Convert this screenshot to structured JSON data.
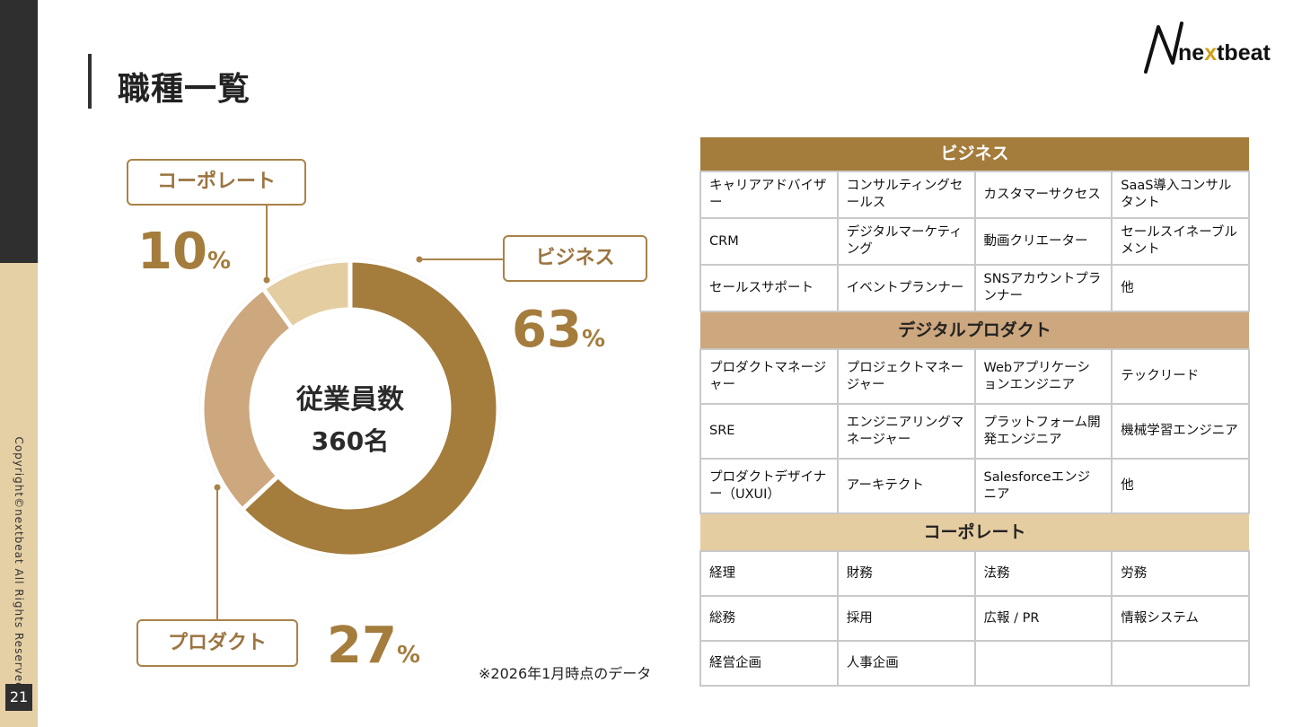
{
  "page": {
    "title": "職種一覧",
    "page_number": "21",
    "copyright": "Copyright©nextbeat All Rights Reserved.",
    "note": "※2026年1月時点のデータ"
  },
  "logo": {
    "text_pre": "ne",
    "text_x": "x",
    "text_post": "tbeat",
    "mark": "N"
  },
  "donut": {
    "center_line1": "従業員数",
    "center_line2": "360名",
    "segments": [
      {
        "name": "ビジネス",
        "percent": "63",
        "unit": "%",
        "color": "#a47c3c"
      },
      {
        "name": "プロダクト",
        "percent": "27",
        "unit": "%",
        "color": "#cda77e"
      },
      {
        "name": "コーポレート",
        "percent": "10",
        "unit": "%",
        "color": "#e5cda2"
      }
    ]
  },
  "table": {
    "business": {
      "header": "ビジネス",
      "rows": [
        [
          "キャリアアドバイザー",
          "コンサルティングセールス",
          "カスタマーサクセス",
          "SaaS導入コンサルタント"
        ],
        [
          "CRM",
          "デジタルマーケティング",
          "動画クリエーター",
          "セールスイネーブルメント"
        ],
        [
          "セールスサポート",
          "イベントプランナー",
          "SNSアカウントプランナー",
          "他"
        ]
      ]
    },
    "digital": {
      "header": "デジタルプロダクト",
      "rows": [
        [
          "プロダクトマネージャー",
          "プロジェクトマネージャー",
          "Webアプリケーションエンジニア",
          "テックリード"
        ],
        [
          "SRE",
          "エンジニアリングマネージャー",
          "プラットフォーム開発エンジニア",
          "機械学習エンジニア"
        ],
        [
          "プロダクトデザイナー（UXUI）",
          "アーキテクト",
          "Salesforceエンジニア",
          "他"
        ]
      ]
    },
    "corporate": {
      "header": "コーポレート",
      "rows": [
        [
          "経理",
          "財務",
          "法務",
          "労務"
        ],
        [
          "総務",
          "採用",
          "広報 /  PR",
          "情報システム"
        ],
        [
          "経営企画",
          "人事企画",
          "",
          ""
        ]
      ]
    }
  }
}
